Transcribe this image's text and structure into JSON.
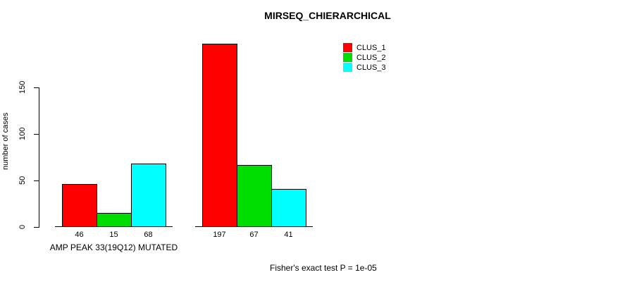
{
  "chart_data": {
    "type": "bar",
    "title": "MIRSEQ_CHIERARCHICAL",
    "ylabel": "number of cases",
    "yticks": [
      0,
      50,
      100,
      150
    ],
    "ylim": [
      0,
      200
    ],
    "grid": false,
    "legend_position": "top-right",
    "series": [
      {
        "name": "CLUS_1",
        "color": "#FF0000",
        "values": [
          46,
          197
        ]
      },
      {
        "name": "CLUS_2",
        "color": "#00DD00",
        "values": [
          15,
          67
        ]
      },
      {
        "name": "CLUS_3",
        "color": "#00FFFF",
        "values": [
          68,
          41
        ]
      }
    ],
    "groups": [
      {
        "label": "AMP PEAK 33(19Q12) MUTATED",
        "bar_labels": [
          "46",
          "15",
          "68"
        ]
      },
      {
        "label": "",
        "bar_labels": [
          "197",
          "67",
          "41"
        ]
      }
    ],
    "footnote": "Fisher's exact test P = 1e-05"
  }
}
